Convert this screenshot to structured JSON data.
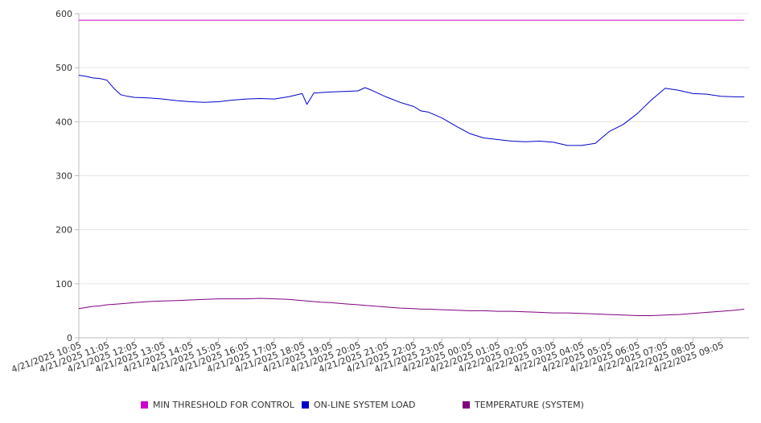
{
  "chart_data": {
    "type": "line",
    "title": "",
    "xlabel": "",
    "ylabel": "",
    "ylim": [
      0,
      600
    ],
    "yticks": [
      0,
      100,
      200,
      300,
      400,
      500,
      600
    ],
    "grid": "horizontal",
    "legend_position": "bottom",
    "x_tick_labels": [
      "4/21/2025 10:05",
      "4/21/2025 11:05",
      "4/21/2025 12:05",
      "4/21/2025 13:05",
      "4/21/2025 14:05",
      "4/21/2025 15:05",
      "4/21/2025 16:05",
      "4/21/2025 17:05",
      "4/21/2025 18:05",
      "4/21/2025 19:05",
      "4/21/2025 20:05",
      "4/21/2025 21:05",
      "4/21/2025 22:05",
      "4/21/2025 23:05",
      "4/22/2025 00:05",
      "4/22/2025 01:05",
      "4/22/2025 02:05",
      "4/22/2025 03:05",
      "4/22/2025 04:05",
      "4/22/2025 05:05",
      "4/22/2025 06:05",
      "4/22/2025 07:05",
      "4/22/2025 08:05",
      "4/22/2025 09:05"
    ],
    "x": [
      "4/21/2025 10:05",
      "4/21/2025 10:20",
      "4/21/2025 10:35",
      "4/21/2025 10:50",
      "4/21/2025 11:05",
      "4/21/2025 11:20",
      "4/21/2025 11:35",
      "4/21/2025 11:50",
      "4/21/2025 12:05",
      "4/21/2025 12:35",
      "4/21/2025 13:05",
      "4/21/2025 13:35",
      "4/21/2025 14:05",
      "4/21/2025 14:35",
      "4/21/2025 15:05",
      "4/21/2025 15:35",
      "4/21/2025 16:05",
      "4/21/2025 16:35",
      "4/21/2025 17:05",
      "4/21/2025 17:35",
      "4/21/2025 18:05",
      "4/21/2025 18:15",
      "4/21/2025 18:30",
      "4/21/2025 18:45",
      "4/21/2025 19:05",
      "4/21/2025 19:35",
      "4/21/2025 20:05",
      "4/21/2025 20:20",
      "4/21/2025 20:35",
      "4/21/2025 21:05",
      "4/21/2025 21:35",
      "4/21/2025 22:05",
      "4/21/2025 22:20",
      "4/21/2025 22:35",
      "4/21/2025 23:05",
      "4/21/2025 23:35",
      "4/22/2025 00:05",
      "4/22/2025 00:35",
      "4/22/2025 01:05",
      "4/22/2025 01:35",
      "4/22/2025 02:05",
      "4/22/2025 02:35",
      "4/22/2025 03:05",
      "4/22/2025 03:35",
      "4/22/2025 04:05",
      "4/22/2025 04:35",
      "4/22/2025 05:05",
      "4/22/2025 05:35",
      "4/22/2025 06:05",
      "4/22/2025 06:35",
      "4/22/2025 07:05",
      "4/22/2025 07:35",
      "4/22/2025 08:05",
      "4/22/2025 08:35",
      "4/22/2025 09:05",
      "4/22/2025 09:35",
      "4/22/2025 09:55"
    ],
    "series": [
      {
        "name": "MIN THRESHOLD FOR CONTROL",
        "color": "#cc00cc",
        "values": [
          588,
          588,
          588,
          588,
          588,
          588,
          588,
          588,
          588,
          588,
          588,
          588,
          588,
          588,
          588,
          588,
          588,
          588,
          588,
          588,
          588,
          588,
          588,
          588,
          588,
          588,
          588,
          588,
          588,
          588,
          588,
          588,
          588,
          588,
          588,
          588,
          588,
          588,
          588,
          588,
          588,
          588,
          588,
          588,
          588,
          588,
          588,
          588,
          588,
          588,
          588,
          588,
          588,
          588,
          588,
          588,
          588
        ]
      },
      {
        "name": "ON-LINE SYSTEM LOAD",
        "color": "#0000cc",
        "values": [
          486,
          484,
          481,
          480,
          477,
          462,
          450,
          447,
          445,
          444,
          442,
          439,
          437,
          436,
          437,
          440,
          442,
          443,
          442,
          446,
          452,
          432,
          453,
          454,
          455,
          456,
          457,
          463,
          458,
          446,
          436,
          428,
          420,
          418,
          407,
          392,
          378,
          370,
          367,
          364,
          363,
          364,
          362,
          356,
          356,
          360,
          382,
          395,
          415,
          440,
          462,
          458,
          452,
          451,
          447,
          446,
          446
        ]
      },
      {
        "name": "TEMPERATURE (SYSTEM)",
        "color": "#800080",
        "values": [
          54,
          56,
          58,
          59,
          61,
          62,
          63,
          64,
          65,
          67,
          68,
          69,
          70,
          71,
          72,
          72,
          72,
          73,
          72,
          71,
          69,
          68,
          67,
          66,
          65,
          63,
          61,
          60,
          59,
          57,
          55,
          54,
          53,
          53,
          52,
          51,
          50,
          50,
          49,
          49,
          48,
          47,
          46,
          46,
          45,
          44,
          43,
          42,
          41,
          41,
          42,
          43,
          45,
          47,
          49,
          51,
          53
        ]
      }
    ]
  }
}
